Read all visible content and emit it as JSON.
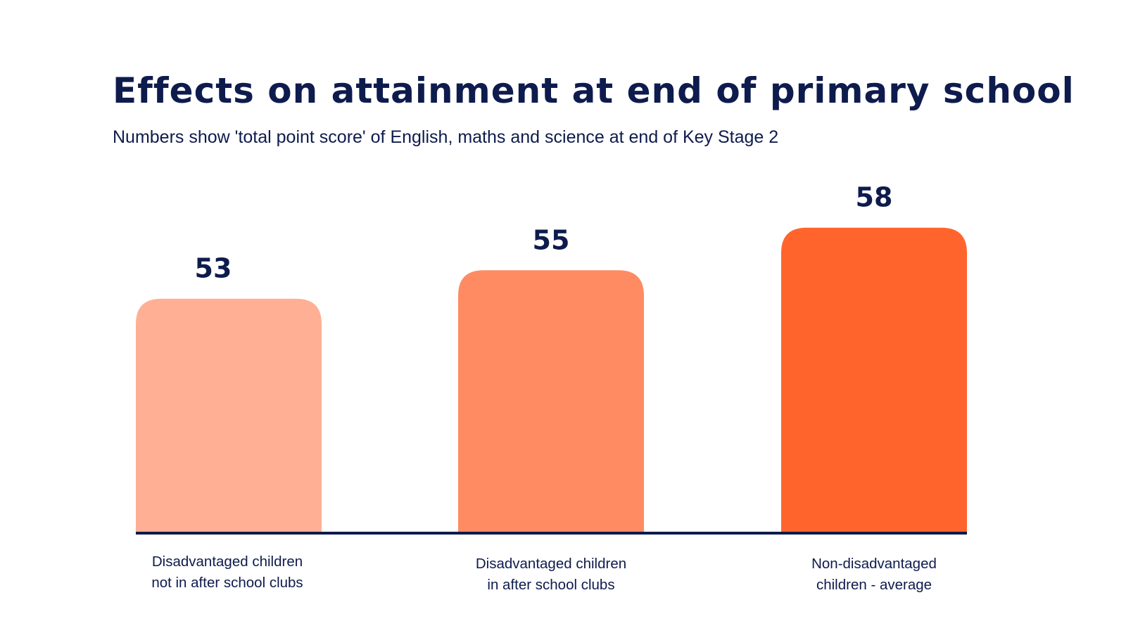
{
  "chart_data": {
    "type": "bar",
    "title": "Effects on attainment at end of primary school",
    "subtitle": "Numbers show 'total point score' of English, maths and science at end of Key Stage 2",
    "categories": [
      "Disadvantaged children not in after school clubs",
      "Disadvantaged children in after school clubs",
      "Non-disadvantaged children - average"
    ],
    "category_lines": [
      [
        "Disadvantaged children",
        "not in after school clubs"
      ],
      [
        "Disadvantaged children",
        "in after school clubs"
      ],
      [
        "Non-disadvantaged",
        "children - average"
      ]
    ],
    "values": [
      53,
      55,
      58
    ],
    "data_labels": [
      "53",
      "55",
      "58"
    ],
    "colors": [
      "#FFAF94",
      "#FF8B63",
      "#FF642D"
    ],
    "axis_color": "#0E1B4D",
    "grid": false,
    "legend": "none",
    "xlabel": "",
    "ylabel": ""
  }
}
